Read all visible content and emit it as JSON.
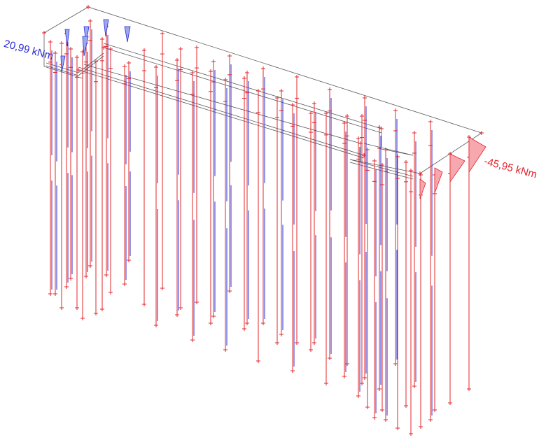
{
  "results": {
    "max_moment_label": "20,99 kNm",
    "min_moment_label": "-45,95 kNm"
  },
  "colors": {
    "positive": "#2b2bd6",
    "negative": "#e3242b",
    "frame": "#5a5a5a",
    "fill_negative": "#f7a8ae",
    "fill_positive": "#9aa8f0"
  }
}
